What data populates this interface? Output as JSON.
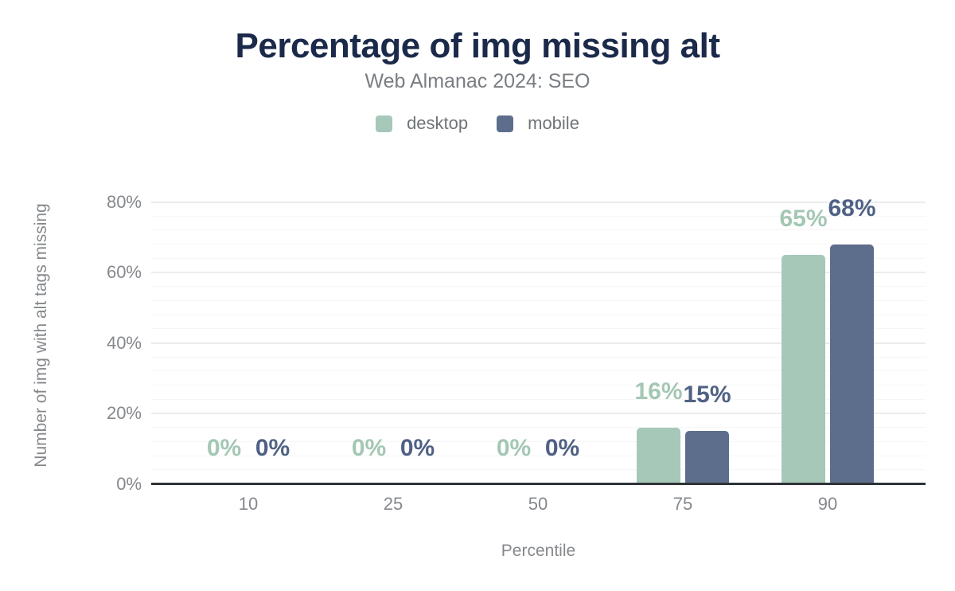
{
  "chart_data": {
    "type": "bar",
    "title": "Percentage of img missing alt",
    "subtitle": "Web Almanac 2024: SEO",
    "categories": [
      "10",
      "25",
      "50",
      "75",
      "90"
    ],
    "series": [
      {
        "name": "desktop",
        "values": [
          0,
          0,
          0,
          16,
          65
        ],
        "data_labels": [
          "0%",
          "0%",
          "0%",
          "16%",
          "65%"
        ],
        "color": "#a6c8b8",
        "data_label_color": "#a3c7b3"
      },
      {
        "name": "mobile",
        "values": [
          0,
          0,
          0,
          15,
          68
        ],
        "data_labels": [
          "0%",
          "0%",
          "0%",
          "15%",
          "68%"
        ],
        "color": "#5d6e8c",
        "data_label_color": "#4f6184"
      }
    ],
    "xlabel": "Percentile",
    "ylabel": "Number of img with alt tags missing",
    "ylim": [
      0,
      80
    ],
    "y_major_ticks": [
      {
        "value": 0,
        "label": "0%"
      },
      {
        "value": 20,
        "label": "20%"
      },
      {
        "value": 40,
        "label": "40%"
      },
      {
        "value": 60,
        "label": "60%"
      },
      {
        "value": 80,
        "label": "80%"
      }
    ],
    "y_minor_step": 4,
    "grid": true,
    "legend_position": "top-center"
  },
  "colors": {
    "background": "#ffffff",
    "title": "#1b2a4a",
    "subtitle": "#797d81",
    "axis_text": "#85888c",
    "legend_text": "#6f7478",
    "axis_line": "#2f3337",
    "grid_major": "#ececec",
    "grid_minor": "#f6f6f6"
  }
}
